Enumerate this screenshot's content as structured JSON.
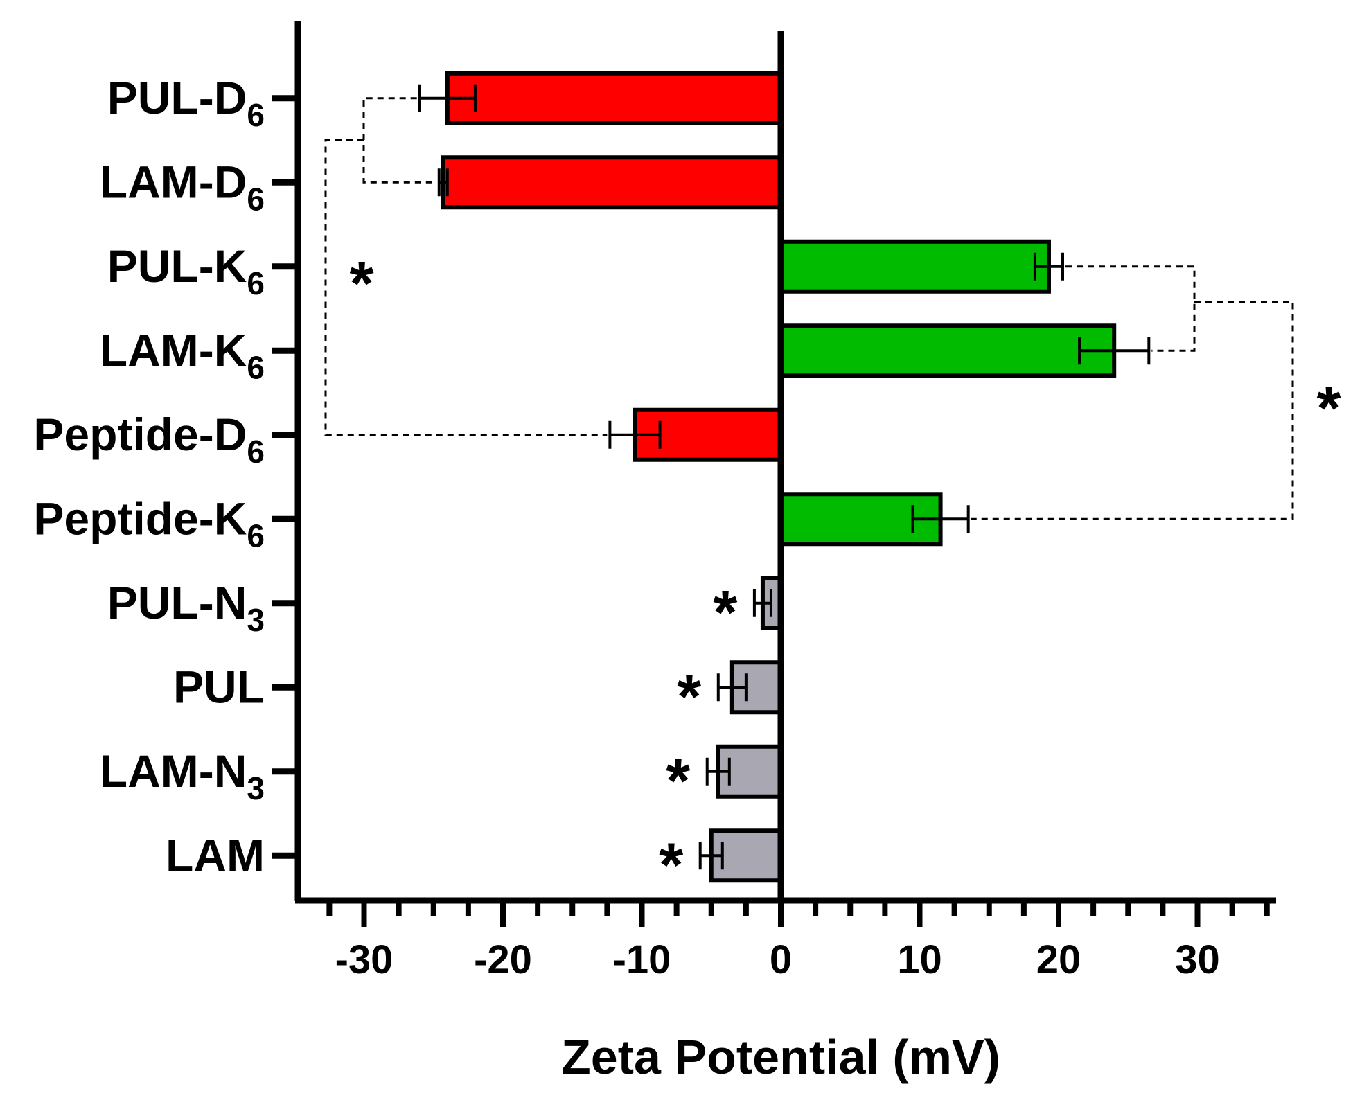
{
  "chart_data": {
    "type": "bar",
    "orientation": "horizontal",
    "xlabel": "Zeta Potential (mV)",
    "xlim": [
      -35,
      35
    ],
    "xticks": [
      -30,
      -20,
      -10,
      0,
      10,
      20,
      30
    ],
    "minor_tick_step": 2.5,
    "categories": [
      {
        "base": "PUL-D",
        "sub": "6",
        "value": -24.0,
        "error": 2.0,
        "color": "#ff0000"
      },
      {
        "base": "LAM-D",
        "sub": "6",
        "value": -24.3,
        "error": 0.3,
        "color": "#ff0000"
      },
      {
        "base": "PUL-K",
        "sub": "6",
        "value": 19.3,
        "error": 1.0,
        "color": "#00bb00"
      },
      {
        "base": "LAM-K",
        "sub": "6",
        "value": 24.0,
        "error": 2.5,
        "color": "#00bb00"
      },
      {
        "base": "Peptide-D",
        "sub": "6",
        "value": -10.5,
        "error": 1.8,
        "color": "#ff0000"
      },
      {
        "base": "Peptide-K",
        "sub": "6",
        "value": 11.5,
        "error": 2.0,
        "color": "#00bb00"
      },
      {
        "base": "PUL-N",
        "sub": "3",
        "value": -1.3,
        "error": 0.6,
        "color": "#a9a7b2"
      },
      {
        "base": "PUL",
        "sub": "",
        "value": -3.5,
        "error": 1.0,
        "color": "#a9a7b2"
      },
      {
        "base": "LAM-N",
        "sub": "3",
        "value": -4.5,
        "error": 0.8,
        "color": "#a9a7b2"
      },
      {
        "base": "LAM",
        "sub": "",
        "value": -5.0,
        "error": 0.8,
        "color": "#a9a7b2"
      }
    ],
    "significance": [
      {
        "label": "*",
        "between": [
          "PUL-D6",
          "LAM-D6",
          "Peptide-D6"
        ]
      },
      {
        "label": "*",
        "between": [
          "PUL-K6",
          "LAM-K6",
          "Peptide-K6"
        ]
      },
      {
        "label": "*",
        "category": "PUL-N3"
      },
      {
        "label": "*",
        "category": "PUL"
      },
      {
        "label": "*",
        "category": "LAM-N3"
      },
      {
        "label": "*",
        "category": "LAM"
      }
    ]
  }
}
